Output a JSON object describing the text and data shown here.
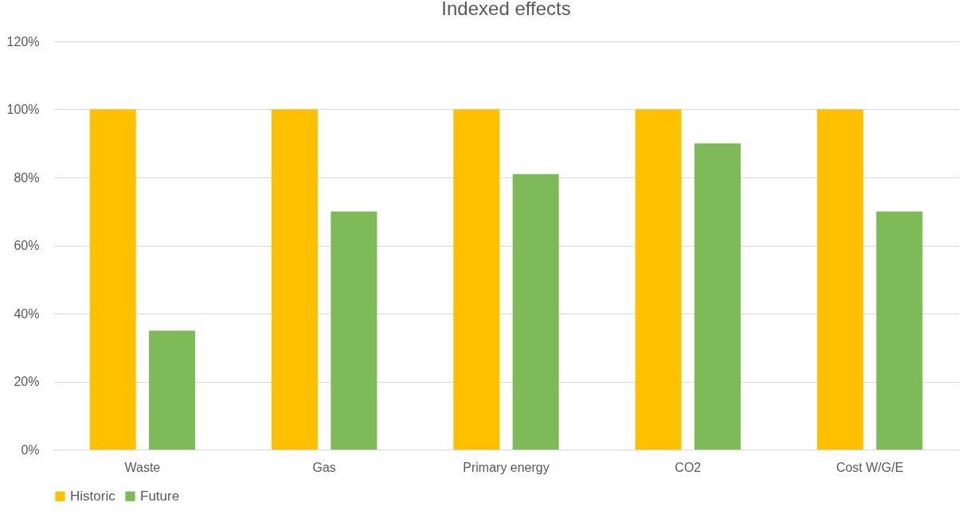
{
  "chart_data": {
    "type": "bar",
    "title": "Indexed effects",
    "categories": [
      "Waste",
      "Gas",
      "Primary energy",
      "CO2",
      "Cost W/G/E"
    ],
    "series": [
      {
        "name": "Historic",
        "color": "#ffc000",
        "values": [
          100,
          100,
          100,
          100,
          100
        ]
      },
      {
        "name": "Future",
        "color": "#7fba59",
        "values": [
          35,
          70,
          81,
          90,
          70
        ]
      }
    ],
    "ylim": [
      0,
      120
    ],
    "yticks": [
      {
        "value": 0,
        "label": "0%"
      },
      {
        "value": 20,
        "label": "20%"
      },
      {
        "value": 40,
        "label": "40%"
      },
      {
        "value": 60,
        "label": "60%"
      },
      {
        "value": 80,
        "label": "80%"
      },
      {
        "value": 100,
        "label": "100%"
      },
      {
        "value": 120,
        "label": "120%"
      }
    ],
    "grid": "y",
    "legend": "bottom"
  }
}
